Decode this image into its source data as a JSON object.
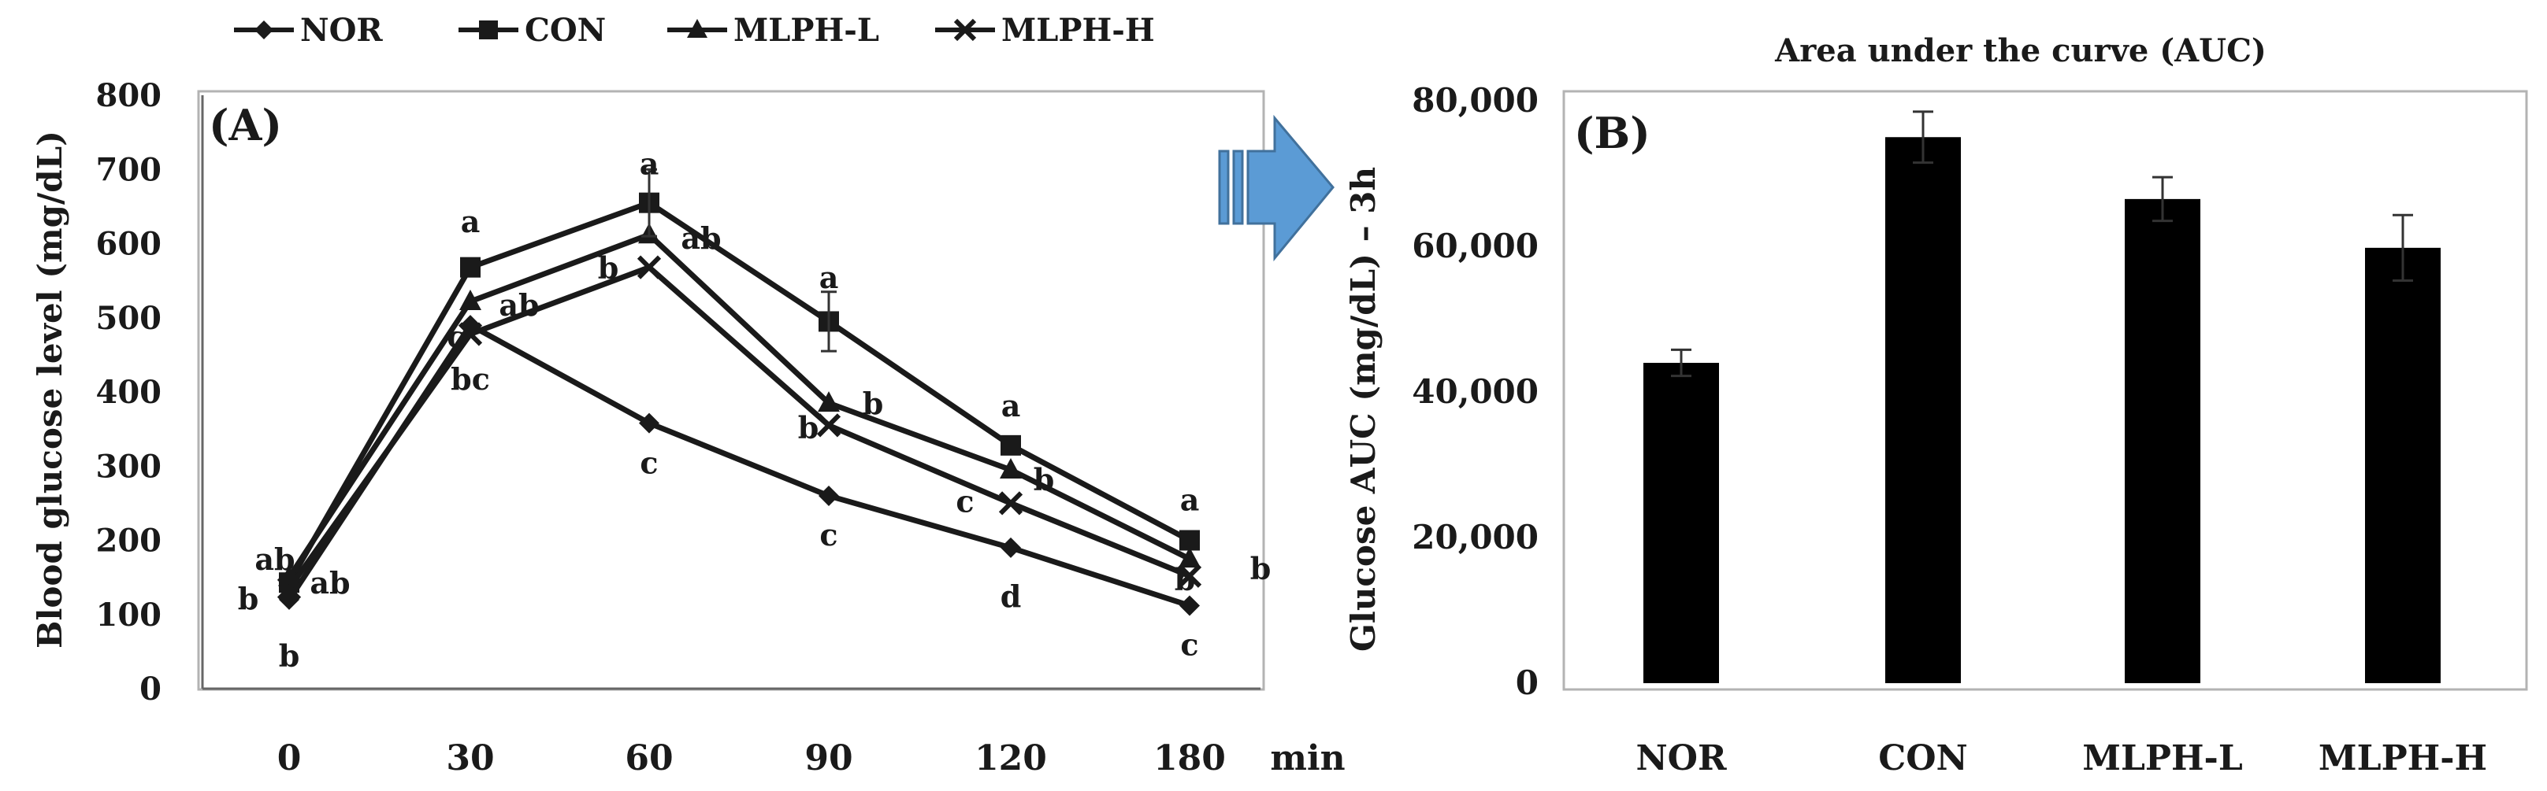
{
  "chart_data": [
    {
      "type": "line",
      "panel_label": "(A)",
      "title": "",
      "xlabel": "min",
      "ylabel": "Blood glucose level (mg/dL)",
      "x": [
        0,
        30,
        60,
        90,
        120,
        180
      ],
      "x_tick_labels": [
        "0",
        "30",
        "60",
        "90",
        "120",
        "180"
      ],
      "ylim": [
        0,
        800
      ],
      "y_ticks": [
        0,
        100,
        200,
        300,
        400,
        500,
        600,
        700,
        800
      ],
      "y_tick_labels": [
        "0",
        "100",
        "200",
        "300",
        "400",
        "500",
        "600",
        "700",
        "800"
      ],
      "grid": false,
      "legend_position": "top",
      "series": [
        {
          "name": "NOR",
          "marker": "diamond",
          "values": [
            120,
            490,
            358,
            260,
            190,
            112
          ]
        },
        {
          "name": "CON",
          "marker": "square",
          "values": [
            143,
            568,
            655,
            495,
            328,
            200
          ]
        },
        {
          "name": "MLPH-L",
          "marker": "triangle",
          "values": [
            150,
            522,
            612,
            385,
            295,
            175
          ]
        },
        {
          "name": "MLPH-H",
          "marker": "cross",
          "values": [
            135,
            478,
            568,
            355,
            250,
            152
          ]
        }
      ],
      "error_bars": [
        {
          "series": "CON",
          "x_index": 2,
          "value": 655,
          "err": 45
        },
        {
          "series": "CON",
          "x_index": 3,
          "value": 495,
          "err": 40
        }
      ],
      "annotations": [
        {
          "text": "ab",
          "x_index": 0,
          "y": 175
        },
        {
          "text": "b",
          "x_index": 0,
          "y": 122
        },
        {
          "text": "ab",
          "x_index": 0,
          "y": 143
        },
        {
          "text": "b",
          "x_index": 0,
          "y": 45
        },
        {
          "text": "a",
          "x_index": 1,
          "y": 630
        },
        {
          "text": "ab",
          "x_index": 1,
          "y": 518
        },
        {
          "text": "c",
          "x_index": 1,
          "y": 475
        },
        {
          "text": "bc",
          "x_index": 1,
          "y": 418
        },
        {
          "text": "a",
          "x_index": 2,
          "y": 708
        },
        {
          "text": "ab",
          "x_index": 2,
          "y": 608
        },
        {
          "text": "b",
          "x_index": 2,
          "y": 568
        },
        {
          "text": "c",
          "x_index": 2,
          "y": 305
        },
        {
          "text": "a",
          "x_index": 3,
          "y": 555
        },
        {
          "text": "b",
          "x_index": 3,
          "y": 385
        },
        {
          "text": "b",
          "x_index": 3,
          "y": 353
        },
        {
          "text": "c",
          "x_index": 3,
          "y": 208
        },
        {
          "text": "a",
          "x_index": 4,
          "y": 382
        },
        {
          "text": "b",
          "x_index": 4,
          "y": 283
        },
        {
          "text": "c",
          "x_index": 4,
          "y": 253
        },
        {
          "text": "d",
          "x_index": 4,
          "y": 125
        },
        {
          "text": "a",
          "x_index": 5,
          "y": 255
        },
        {
          "text": "b",
          "x_index": 5,
          "y": 163
        },
        {
          "text": "b",
          "x_index": 5,
          "y": 148
        },
        {
          "text": "c",
          "x_index": 5,
          "y": 60
        }
      ]
    },
    {
      "type": "bar",
      "panel_label": "(B)",
      "title": "Area under the curve (AUC)",
      "xlabel": "",
      "ylabel": "Glucose AUC (mg/dL) – 3h",
      "categories": [
        "NOR",
        "CON",
        "MLPH-L",
        "MLPH-H"
      ],
      "values": [
        44000,
        75000,
        66500,
        59800
      ],
      "errors": [
        1800,
        3500,
        3000,
        4500
      ],
      "ylim": [
        0,
        80000
      ],
      "y_ticks": [
        0,
        20000,
        40000,
        60000,
        80000
      ],
      "y_tick_labels": [
        "0",
        "20,000",
        "40,000",
        "60,000",
        "80,000"
      ],
      "grid": false
    }
  ],
  "colors": {
    "line": "#1a1a1a",
    "bar": "#000000",
    "axis": "#666666",
    "frame": "#b3b3b3",
    "arrow": "#5b9bd5",
    "arrow_edge": "#41719c"
  }
}
